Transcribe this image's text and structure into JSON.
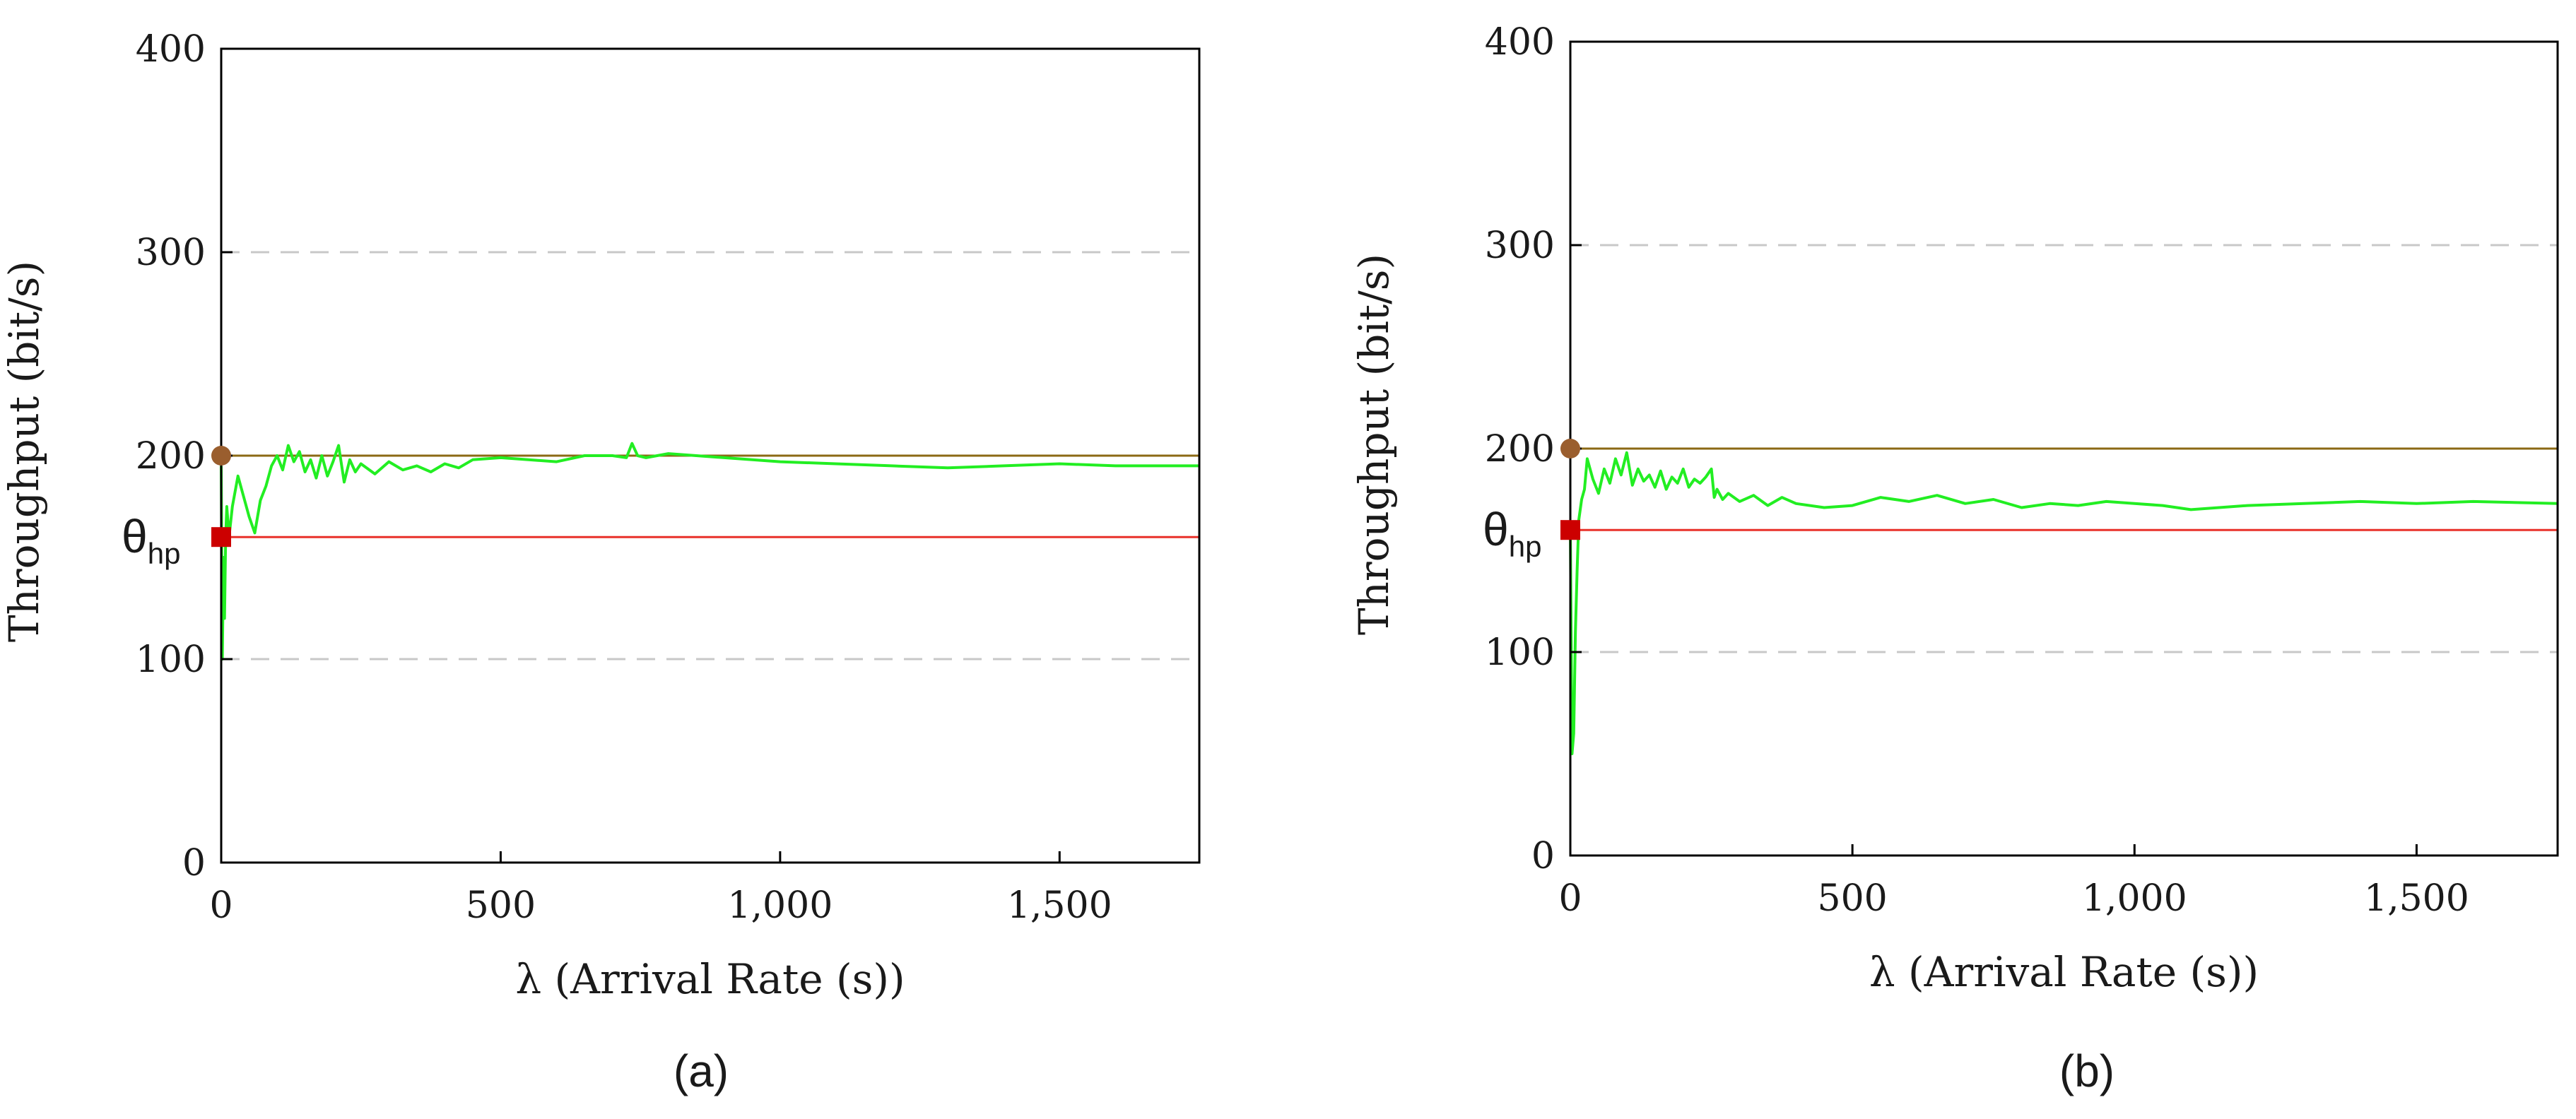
{
  "chart_data": [
    {
      "type": "line",
      "panel_label": "(a)",
      "xlabel": "λ (Arrival Rate (s))",
      "ylabel": "Throughput (bit/s)",
      "xlim": [
        0,
        1750
      ],
      "ylim": [
        0,
        400
      ],
      "x_ticks": [
        0,
        500,
        1000,
        1500
      ],
      "x_tick_labels": [
        "0",
        "500",
        "1,000",
        "1,500"
      ],
      "y_ticks": [
        0,
        100,
        200,
        300,
        400
      ],
      "y_tick_labels": [
        "0",
        "100",
        "200",
        "300",
        "400"
      ],
      "grid": "horizontal dashed at 100 and 300",
      "reference_lines": [
        {
          "name": "capacity",
          "y": 200,
          "color": "#8b6914"
        },
        {
          "name": "theta_hp",
          "y": 160,
          "color": "#e8312a"
        }
      ],
      "markers": [
        {
          "name": "capacity-marker",
          "x": 0,
          "y": 200,
          "shape": "circle",
          "color": "#9a5e2e"
        },
        {
          "name": "theta-marker",
          "x": 0,
          "y": 160,
          "shape": "square",
          "color": "#cc0000"
        }
      ],
      "annotation": {
        "text": "θ",
        "subscript": "hp"
      },
      "series": [
        {
          "name": "throughput",
          "color": "#22ee22",
          "x": [
            0,
            2,
            4,
            6,
            8,
            10,
            14,
            20,
            30,
            40,
            50,
            60,
            70,
            80,
            90,
            100,
            110,
            120,
            130,
            140,
            150,
            160,
            170,
            180,
            190,
            200,
            210,
            220,
            230,
            240,
            250,
            275,
            300,
            325,
            350,
            375,
            400,
            425,
            450,
            500,
            550,
            600,
            650,
            700,
            725,
            735,
            745,
            760,
            800,
            850,
            900,
            950,
            1000,
            1100,
            1200,
            1300,
            1400,
            1500,
            1600,
            1750
          ],
          "y": [
            195,
            100,
            150,
            120,
            160,
            175,
            160,
            175,
            190,
            180,
            170,
            162,
            178,
            185,
            195,
            200,
            193,
            205,
            197,
            202,
            192,
            198,
            189,
            200,
            190,
            197,
            205,
            187,
            198,
            192,
            196,
            191,
            197,
            193,
            195,
            192,
            196,
            194,
            198,
            199,
            198,
            197,
            200,
            200,
            199,
            206,
            200,
            199,
            201,
            200,
            199,
            198,
            197,
            196,
            195,
            194,
            195,
            196,
            195,
            195
          ]
        }
      ]
    },
    {
      "type": "line",
      "panel_label": "(b)",
      "xlabel": "λ (Arrival Rate (s))",
      "ylabel": "Throughput (bit/s)",
      "xlim": [
        0,
        1750
      ],
      "ylim": [
        0,
        400
      ],
      "x_ticks": [
        0,
        500,
        1000,
        1500
      ],
      "x_tick_labels": [
        "0",
        "500",
        "1,000",
        "1,500"
      ],
      "y_ticks": [
        0,
        100,
        200,
        300,
        400
      ],
      "y_tick_labels": [
        "0",
        "100",
        "200",
        "300",
        "400"
      ],
      "grid": "horizontal dashed at 100 and 300",
      "reference_lines": [
        {
          "name": "capacity",
          "y": 200,
          "color": "#8b6914"
        },
        {
          "name": "theta_hp",
          "y": 160,
          "color": "#e8312a"
        }
      ],
      "markers": [
        {
          "name": "capacity-marker",
          "x": 0,
          "y": 200,
          "shape": "circle",
          "color": "#9a5e2e"
        },
        {
          "name": "theta-marker",
          "x": 0,
          "y": 160,
          "shape": "square",
          "color": "#cc0000"
        }
      ],
      "annotation": {
        "text": "θ",
        "subscript": "hp"
      },
      "series": [
        {
          "name": "throughput",
          "color": "#22ee22",
          "x": [
            0,
            3,
            6,
            9,
            12,
            15,
            20,
            25,
            30,
            40,
            50,
            60,
            70,
            80,
            90,
            100,
            110,
            120,
            130,
            140,
            150,
            160,
            170,
            180,
            190,
            200,
            210,
            220,
            230,
            240,
            250,
            255,
            260,
            270,
            280,
            300,
            325,
            350,
            375,
            400,
            450,
            500,
            550,
            600,
            650,
            700,
            750,
            800,
            850,
            900,
            950,
            1000,
            1050,
            1100,
            1150,
            1200,
            1300,
            1400,
            1500,
            1600,
            1750
          ],
          "y": [
            160,
            50,
            60,
            110,
            140,
            165,
            175,
            180,
            195,
            185,
            178,
            190,
            183,
            195,
            187,
            198,
            182,
            190,
            184,
            187,
            181,
            189,
            180,
            186,
            183,
            190,
            181,
            185,
            183,
            186,
            190,
            176,
            180,
            175,
            178,
            174,
            177,
            172,
            176,
            173,
            171,
            172,
            176,
            174,
            177,
            173,
            175,
            171,
            173,
            172,
            174,
            173,
            172,
            170,
            171,
            172,
            173,
            174,
            173,
            174,
            173
          ]
        }
      ]
    }
  ]
}
